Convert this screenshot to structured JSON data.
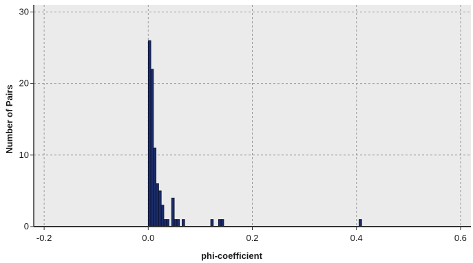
{
  "chart_data": {
    "type": "bar",
    "subtype": "histogram",
    "title": "",
    "xlabel": "phi-coefficient",
    "ylabel": "Number of Pairs",
    "xlim": [
      -0.22,
      0.62
    ],
    "ylim": [
      0,
      31
    ],
    "xticks": [
      -0.2,
      0.0,
      0.2,
      0.4,
      0.6
    ],
    "xtick_labels": [
      "-0.2",
      "0.0",
      "0.2",
      "0.4",
      "0.6"
    ],
    "yticks": [
      0,
      10,
      20,
      30
    ],
    "ytick_labels": [
      "0",
      "10",
      "20",
      "30"
    ],
    "grid": true,
    "legend": "none",
    "bin_width": 0.005,
    "bins": [
      {
        "x": 0.0,
        "count": 26
      },
      {
        "x": 0.005,
        "count": 22
      },
      {
        "x": 0.01,
        "count": 11
      },
      {
        "x": 0.015,
        "count": 6
      },
      {
        "x": 0.02,
        "count": 5
      },
      {
        "x": 0.025,
        "count": 3
      },
      {
        "x": 0.03,
        "count": 1
      },
      {
        "x": 0.035,
        "count": 1
      },
      {
        "x": 0.045,
        "count": 4
      },
      {
        "x": 0.05,
        "count": 1
      },
      {
        "x": 0.055,
        "count": 1
      },
      {
        "x": 0.065,
        "count": 1
      },
      {
        "x": 0.12,
        "count": 1
      },
      {
        "x": 0.135,
        "count": 1
      },
      {
        "x": 0.14,
        "count": 1
      },
      {
        "x": 0.405,
        "count": 1
      }
    ],
    "colors": {
      "bar_fill": "#1b2c6b",
      "bar_stroke": "#0a0f2a",
      "plot_background": "#ebebeb",
      "grid": "#9a9a9a",
      "axis": "#333333"
    }
  }
}
